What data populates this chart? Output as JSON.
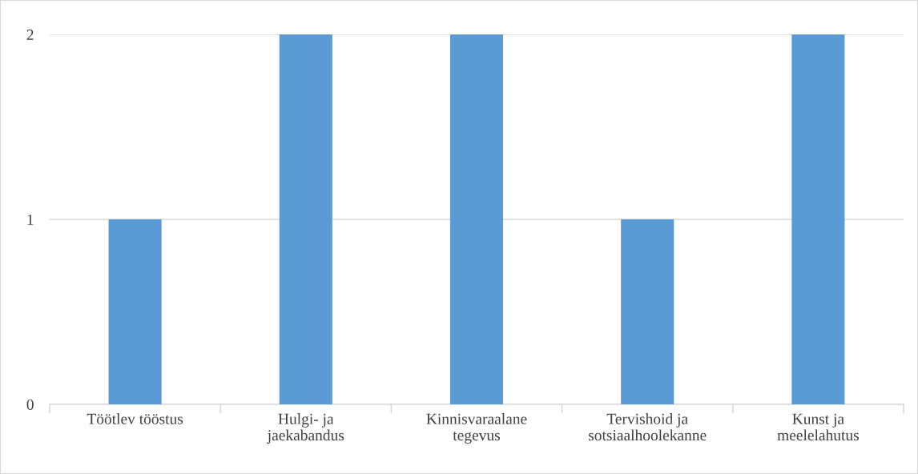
{
  "chart_data": {
    "type": "bar",
    "categories": [
      "Töötlev tööstus",
      "Hulgi- ja\njaekabandus",
      "Kinnisvaraalane\ntegevus",
      "Tervishoid ja\nsotsiaalhoolekanne",
      "Kunst ja\nmeelelahutus"
    ],
    "values": [
      1,
      2,
      2,
      1,
      2
    ],
    "color": "#5b9bd5",
    "ylim": [
      0,
      2
    ],
    "yticks": [
      0,
      1,
      2
    ],
    "grid": "y",
    "legend": false
  }
}
